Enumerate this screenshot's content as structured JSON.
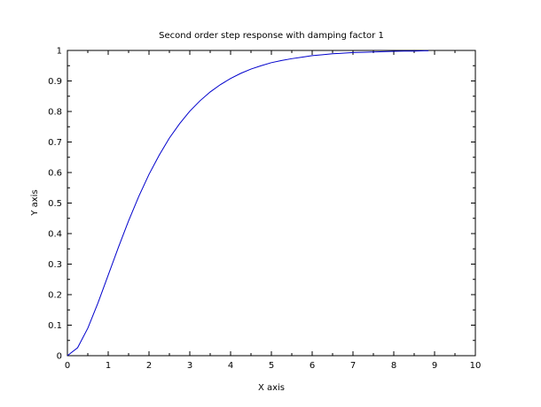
{
  "chart_data": {
    "type": "line",
    "title": "Second order step response with damping factor 1",
    "xlabel": "X axis",
    "ylabel": "Y axis",
    "xlim": [
      0,
      10
    ],
    "ylim": [
      0,
      1
    ],
    "x_ticks": [
      "0",
      "1",
      "2",
      "3",
      "4",
      "5",
      "6",
      "7",
      "8",
      "9",
      "10"
    ],
    "y_ticks": [
      "0",
      "0.1",
      "0.2",
      "0.3",
      "0.4",
      "0.5",
      "0.6",
      "0.7",
      "0.8",
      "0.9",
      "1"
    ],
    "grid": false,
    "series": [
      {
        "color": "#0000cc",
        "x": [
          0,
          0.25,
          0.5,
          0.75,
          1,
          1.25,
          1.5,
          1.75,
          2,
          2.25,
          2.5,
          2.75,
          3,
          3.25,
          3.5,
          3.75,
          4,
          4.25,
          4.5,
          4.75,
          5,
          5.25,
          5.5,
          5.75,
          6,
          6.25,
          6.5,
          6.75,
          7,
          7.25,
          7.5,
          7.75,
          8,
          8.25,
          8.5,
          8.75,
          8.85
        ],
        "y": [
          0,
          0.026,
          0.09,
          0.173,
          0.264,
          0.355,
          0.442,
          0.522,
          0.594,
          0.657,
          0.713,
          0.76,
          0.801,
          0.835,
          0.864,
          0.888,
          0.908,
          0.925,
          0.939,
          0.95,
          0.96,
          0.967,
          0.973,
          0.978,
          0.983,
          0.986,
          0.989,
          0.991,
          0.993,
          0.994,
          0.995,
          0.996,
          0.997,
          0.998,
          0.998,
          0.999,
          0.999
        ]
      }
    ]
  }
}
